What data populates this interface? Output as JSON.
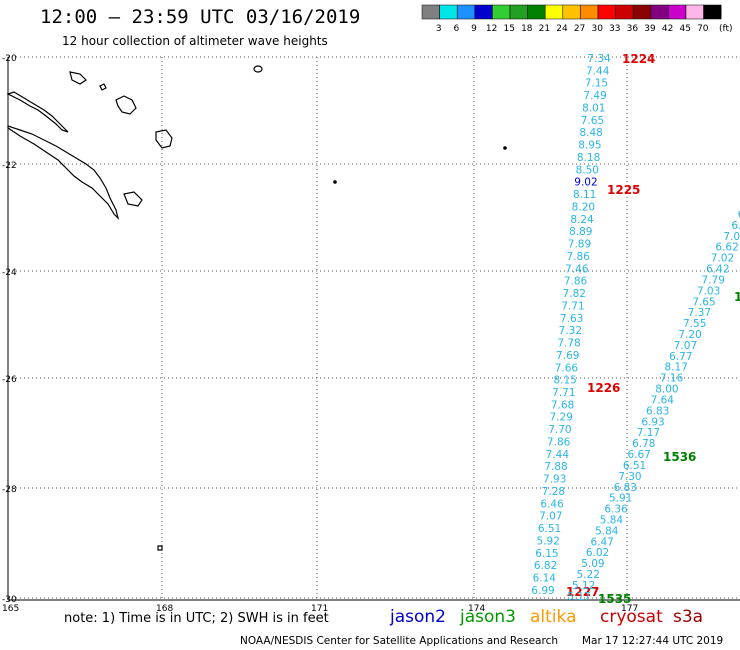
{
  "header": {
    "title": "12:00 – 23:59 UTC 03/16/2019",
    "subtitle": "12 hour collection of altimeter wave heights"
  },
  "legend": {
    "unit": "(ft)",
    "bins": [
      {
        "label": "3",
        "color": "#808080"
      },
      {
        "label": "6",
        "color": "#00e5e5"
      },
      {
        "label": "9",
        "color": "#1e90ff"
      },
      {
        "label": "12",
        "color": "#0000cd"
      },
      {
        "label": "15",
        "color": "#32cd32"
      },
      {
        "label": "18",
        "color": "#22a022"
      },
      {
        "label": "21",
        "color": "#008000"
      },
      {
        "label": "24",
        "color": "#ffff00"
      },
      {
        "label": "27",
        "color": "#ffc000"
      },
      {
        "label": "30",
        "color": "#ff8c00"
      },
      {
        "label": "33",
        "color": "#ff0000"
      },
      {
        "label": "36",
        "color": "#cc0000"
      },
      {
        "label": "39",
        "color": "#8b0000"
      },
      {
        "label": "42",
        "color": "#800080"
      },
      {
        "label": "45",
        "color": "#cc00cc"
      },
      {
        "label": "70",
        "color": "#ffb6e8"
      },
      {
        "label": "",
        "color": "#000000"
      }
    ]
  },
  "axes": {
    "lat_labels": [
      "-20",
      "-22",
      "-24",
      "-26",
      "-28",
      "-30"
    ],
    "lon_labels": [
      "165",
      "168",
      "171",
      "174",
      "177"
    ]
  },
  "tracks": [
    {
      "satellite": "cryosat",
      "color": "#29b6e8",
      "values": [
        "7.34",
        "7.44",
        "7.15",
        "7.49",
        "8.01",
        "7.65",
        "8.48",
        "8.95",
        "8.18",
        "8.50",
        "9.02",
        "8.11",
        "8.20",
        "8.24",
        "8.89",
        "7.89",
        "7.86",
        "7.46",
        "7.86",
        "7.82",
        "7.71",
        "7.63",
        "7.32",
        "7.78",
        "7.69",
        "7.66",
        "8.15",
        "7.71",
        "7.68",
        "7.29",
        "7.70",
        "7.86",
        "7.44",
        "7.88",
        "7.93",
        "7.28",
        "6.46",
        "7.07",
        "6.51",
        "5.92",
        "6.15",
        "6.82",
        "6.14",
        "6.99"
      ],
      "time_labels": [
        {
          "text": "1224",
          "color": "#dd0000"
        },
        {
          "text": "1225",
          "color": "#dd0000"
        },
        {
          "text": "1226",
          "color": "#dd0000"
        },
        {
          "text": "1227",
          "color": "#dd0000"
        }
      ]
    },
    {
      "satellite": "jason3",
      "color": "#29b6e8",
      "values": [
        "6",
        "6.",
        "7.0",
        "6.62",
        "7.02",
        "6.42",
        "7.79",
        "7.03",
        "7.65",
        "7.37",
        "7.55",
        "7.20",
        "7.07",
        "6.77",
        "8.17",
        "7.16",
        "8.00",
        "7.64",
        "6.83",
        "6.93",
        "7.17",
        "6.78",
        "6.67",
        "6.51",
        "7.30",
        "6.83",
        "5.91",
        "6.36",
        "5.84",
        "5.84",
        "6.47",
        "6.02",
        "5.09",
        "5.22",
        "5.12",
        "5.17"
      ],
      "time_labels": [
        {
          "text": "1",
          "color": "#008000"
        },
        {
          "text": "1536",
          "color": "#008000"
        },
        {
          "text": "1535",
          "color": "#008000"
        }
      ]
    }
  ],
  "footer": {
    "note": "note: 1) Time is in UTC; 2) SWH is in feet",
    "satellites": [
      {
        "name": "jason2",
        "color": "#0000cc"
      },
      {
        "name": "jason3",
        "color": "#009900"
      },
      {
        "name": "altika",
        "color": "#ff9900"
      },
      {
        "name": "cryosat",
        "color": "#cc0000"
      },
      {
        "name": "s3a",
        "color": "#990000"
      }
    ],
    "credit": "NOAA/NESDIS Center for Satellite Applications and Research",
    "timestamp": "Mar 17 12:27:44 UTC 2019"
  }
}
